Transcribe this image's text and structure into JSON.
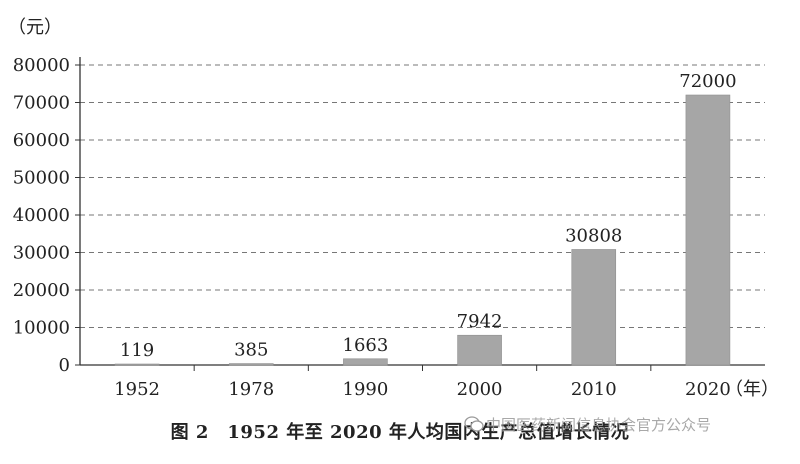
{
  "chart_data": {
    "type": "bar",
    "categories": [
      "1952",
      "1978",
      "1990",
      "2000",
      "2010",
      "2020"
    ],
    "values": [
      119,
      385,
      1663,
      7942,
      30808,
      72000
    ],
    "data_labels": [
      "119",
      "385",
      "1663",
      "7942",
      "30808",
      "72000"
    ],
    "y_unit": "（元）",
    "x_unit": "（年）",
    "ylim": [
      0,
      80000
    ],
    "yticks": [
      0,
      10000,
      20000,
      30000,
      40000,
      50000,
      60000,
      70000,
      80000
    ],
    "ytick_labels": [
      "0",
      "10000",
      "20000",
      "30000",
      "40000",
      "50000",
      "60000",
      "70000",
      "80000"
    ],
    "grid": "horizontal dashed",
    "bar_color": "#a6a6a6",
    "axis_color": "#333333"
  },
  "caption": {
    "text": "图 2　1952 年至 2020 年人均国内生产总值增长情况"
  },
  "watermark": {
    "text": "中国医药新闻信息协会官方公众号",
    "icon": "wechat-icon"
  }
}
